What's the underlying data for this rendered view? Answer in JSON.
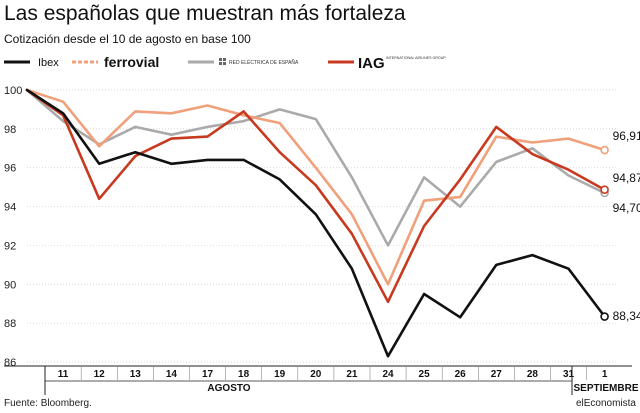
{
  "title": "Las españolas que muestran más fortaleza",
  "subtitle": "Cotización desde el 10 de agosto en base 100",
  "source": "Fuente: Bloomberg.",
  "brand": "elEconomista",
  "legend_logo_lines": {
    "ree": "RED ELÉCTRICA DE ESPAÑA",
    "iag_small": "INTERNATIONAL AIRLINES GROUP"
  },
  "chart_data": {
    "type": "line",
    "x": [
      "10",
      "11",
      "12",
      "13",
      "14",
      "17",
      "18",
      "19",
      "20",
      "21",
      "24",
      "25",
      "26",
      "27",
      "28",
      "31",
      "1"
    ],
    "x_tick_labels": [
      "11",
      "12",
      "13",
      "14",
      "17",
      "18",
      "19",
      "20",
      "21",
      "24",
      "25",
      "26",
      "27",
      "28",
      "31",
      "1"
    ],
    "month_labels": [
      {
        "label": "AGOSTO",
        "from": "11",
        "to": "31"
      },
      {
        "label": "SEPTIEMBRE",
        "from": "1",
        "to": "1"
      }
    ],
    "ylim": [
      86,
      100
    ],
    "yticks": [
      86,
      88,
      90,
      92,
      94,
      96,
      98,
      100
    ],
    "grid": true,
    "legend_position": "top",
    "series": [
      {
        "name": "Ibex",
        "color": "#111111",
        "dashed": false,
        "width": 2.6,
        "values": [
          100,
          98.8,
          96.2,
          96.8,
          96.2,
          96.4,
          96.4,
          95.4,
          93.6,
          90.8,
          86.3,
          89.5,
          88.3,
          91.0,
          91.5,
          90.8,
          88.34
        ],
        "end_label": "88,34"
      },
      {
        "name": "Ferrovial",
        "color": "#f0a07a",
        "dashed": true,
        "width": 2.6,
        "values": [
          100,
          99.4,
          97.1,
          98.9,
          98.8,
          99.2,
          98.7,
          98.3,
          96.0,
          93.6,
          90.0,
          94.3,
          94.5,
          97.6,
          97.3,
          97.5,
          96.91
        ],
        "end_label": "96,91"
      },
      {
        "name": "Red Eléctrica de España",
        "color": "#aaaaaa",
        "dashed": false,
        "width": 2.6,
        "values": [
          100,
          98.4,
          97.2,
          98.1,
          97.7,
          98.1,
          98.4,
          99.0,
          98.5,
          95.5,
          92.0,
          95.5,
          94.0,
          96.3,
          97.0,
          95.6,
          94.7
        ],
        "end_label": "94,70"
      },
      {
        "name": "IAG",
        "color": "#c83a20",
        "dashed": false,
        "width": 2.6,
        "values": [
          100,
          98.7,
          94.4,
          96.6,
          97.5,
          97.6,
          98.9,
          96.8,
          95.1,
          92.6,
          89.1,
          93.0,
          95.4,
          98.1,
          96.7,
          95.9,
          94.87
        ],
        "end_label": "94,87"
      }
    ]
  }
}
